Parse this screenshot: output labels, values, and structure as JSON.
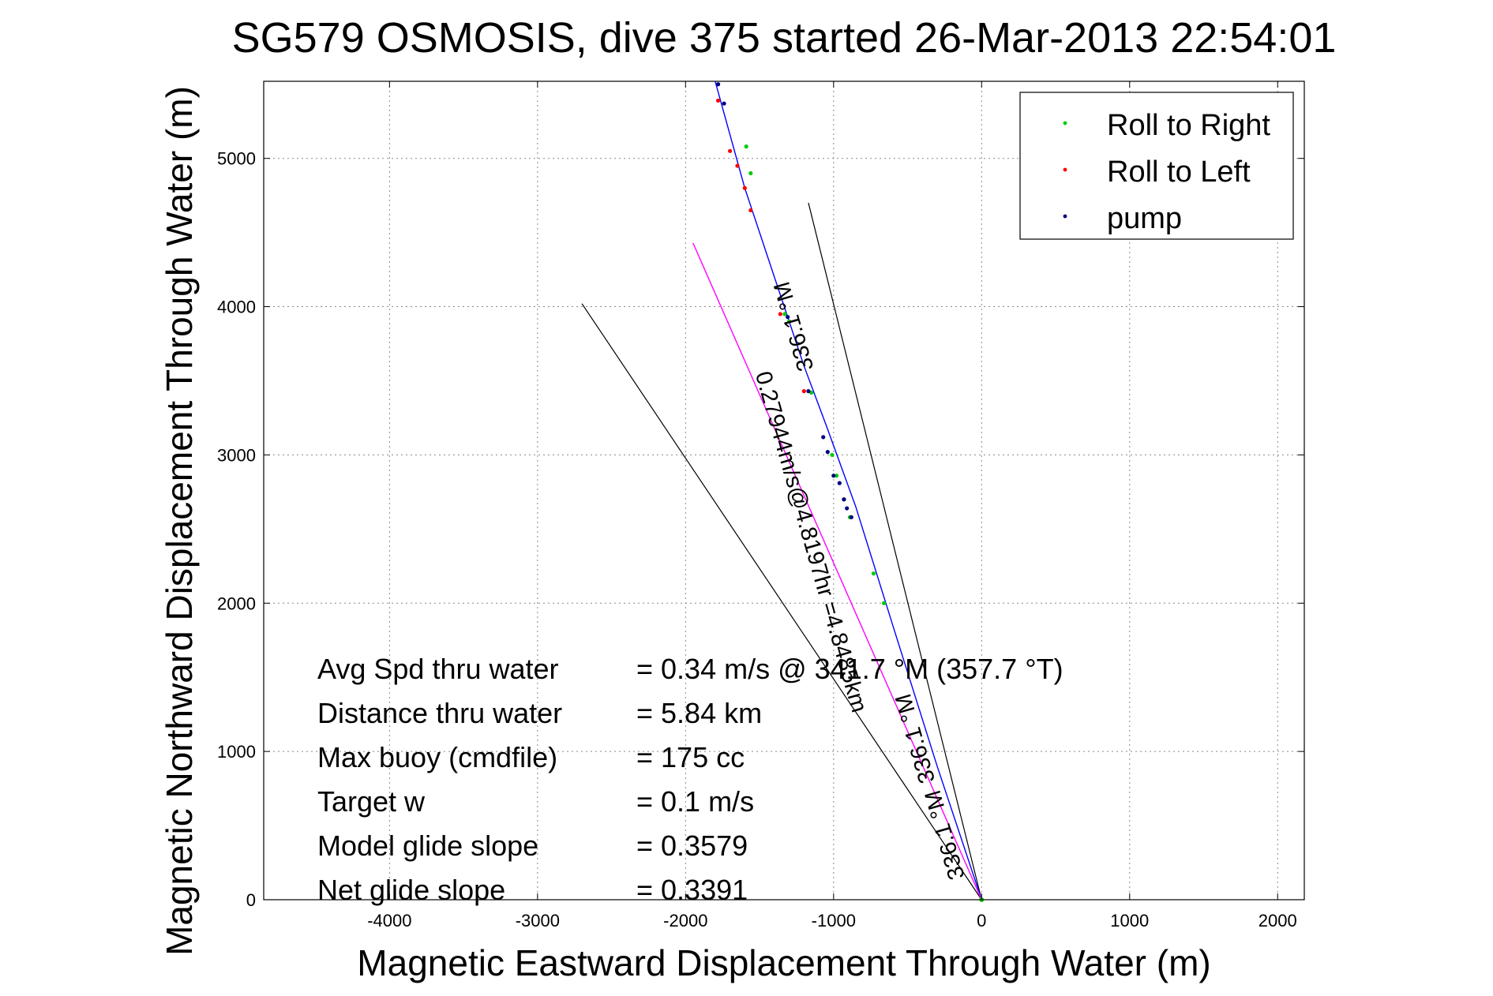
{
  "chart_data": {
    "type": "line",
    "title": "SG579 OSMOSIS, dive 375 started 26-Mar-2013 22:54:01",
    "xlabel": "Magnetic Eastward Displacement Through Water (m)",
    "ylabel": "Magnetic Northward Displacement Through Water (m)",
    "xlim": [
      -4850,
      2180
    ],
    "ylim": [
      0,
      5520
    ],
    "xticks": [
      -4000,
      -3000,
      -2000,
      -1000,
      0,
      1000,
      2000
    ],
    "yticks": [
      0,
      1000,
      2000,
      3000,
      4000,
      5000
    ],
    "grid": true,
    "legend_position": "top-right",
    "legend": [
      {
        "label": "Roll to Right",
        "color": "#00cc00"
      },
      {
        "label": "Roll to Left",
        "color": "#ff0000"
      },
      {
        "label": "pump",
        "color": "#000080"
      }
    ],
    "series": [
      {
        "kind": "track",
        "color": "#0000ff",
        "x": [
          0,
          -300,
          -600,
          -850,
          -1050,
          -1200,
          -1400,
          -1600,
          -1800
        ],
        "y": [
          0,
          900,
          1850,
          2650,
          3200,
          3600,
          4200,
          4800,
          5520
        ]
      },
      {
        "kind": "model",
        "color": "#ff00ff",
        "x": [
          0,
          -1950
        ],
        "y": [
          0,
          4430
        ]
      },
      {
        "kind": "markers",
        "label": "Roll to Right",
        "color": "#00cc00",
        "x": [
          -660,
          -730,
          -890,
          -930,
          -980,
          -1010,
          -1150,
          -1300,
          -1330,
          -1560,
          -1590
        ],
        "y": [
          2000,
          2200,
          2580,
          2700,
          2860,
          3000,
          3420,
          3900,
          3950,
          4900,
          5080
        ]
      },
      {
        "kind": "markers",
        "label": "Roll to Left",
        "color": "#ff0000",
        "x": [
          -1200,
          -1360,
          -1560,
          -1600,
          -1650,
          -1700,
          -1780
        ],
        "y": [
          3430,
          3950,
          4650,
          4800,
          4950,
          5050,
          5390
        ]
      },
      {
        "kind": "markers",
        "label": "pump",
        "color": "#000080",
        "x": [
          -1070,
          -1040,
          -1000,
          -960,
          -930,
          -910,
          -880,
          -1310,
          -1170,
          -1740,
          -1780
        ],
        "y": [
          3120,
          3020,
          2860,
          2810,
          2700,
          2640,
          2580,
          3930,
          3430,
          5370,
          5500
        ]
      }
    ],
    "annotations": {
      "reference_lines": [
        {
          "x": [
            0,
            -1170
          ],
          "y": [
            0,
            4700
          ]
        },
        {
          "x": [
            0,
            -2700
          ],
          "y": [
            0,
            4020
          ]
        }
      ],
      "rotated_labels": [
        {
          "text": "0.27944m/s@4.8197hr =4.8485km",
          "x": -1200,
          "y": 2400,
          "angle_deg": 74
        },
        {
          "text": "336.1 °M",
          "x": -1220,
          "y": 3880,
          "angle_deg": -106
        },
        {
          "text": "336.1 °M",
          "x": -400,
          "y": 1100,
          "angle_deg": -106
        },
        {
          "text": "336.1 °M",
          "x": -200,
          "y": 450,
          "angle_deg": -106
        }
      ]
    },
    "stats": [
      {
        "label": "Avg Spd thru water",
        "value": "=  0.34 m/s @ 341.7 °M (357.7 °T)"
      },
      {
        "label": "Distance thru water",
        "value": "=  5.84 km"
      },
      {
        "label": "Max buoy (cmdfile)",
        "value": "= 175 cc"
      },
      {
        "label": "Target w",
        "value": "= 0.1 m/s"
      },
      {
        "label": "Model glide slope",
        "value": "= 0.3579"
      },
      {
        "label": "Net glide slope",
        "value": "= 0.3391"
      }
    ]
  }
}
